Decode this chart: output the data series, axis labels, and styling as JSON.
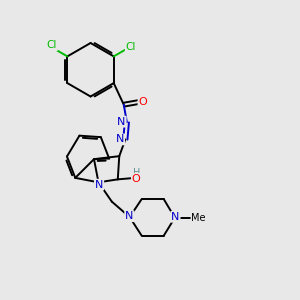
{
  "bg_color": "#e8e8e8",
  "atom_color_C": "#000000",
  "atom_color_N": "#0000cc",
  "atom_color_O": "#ff0000",
  "atom_color_Cl": "#00bb00",
  "atom_color_H": "#5f8f8f",
  "bond_color": "#000000",
  "bond_width": 1.4,
  "fig_width": 3.0,
  "fig_height": 3.0,
  "dpi": 100,
  "xlim": [
    0,
    10
  ],
  "ylim": [
    0,
    10
  ]
}
